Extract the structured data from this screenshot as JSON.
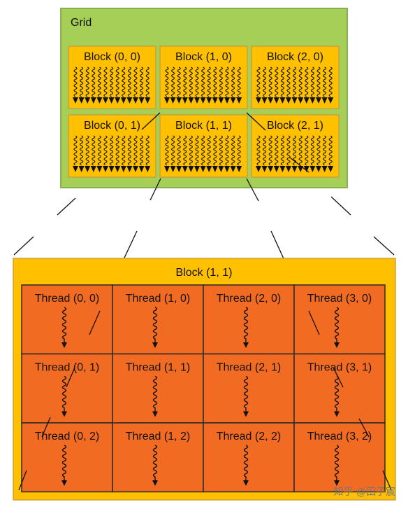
{
  "grid": {
    "label": "Grid",
    "blocks": [
      {
        "label": "Block (0, 0)"
      },
      {
        "label": "Block (1, 0)"
      },
      {
        "label": "Block (2, 0)"
      },
      {
        "label": "Block (0, 1)"
      },
      {
        "label": "Block (1, 1)"
      },
      {
        "label": "Block (2, 1)"
      }
    ]
  },
  "block_detail": {
    "label": "Block (1, 1)",
    "threads": [
      {
        "label": "Thread (0, 0)"
      },
      {
        "label": "Thread (1, 0)"
      },
      {
        "label": "Thread (2, 0)"
      },
      {
        "label": "Thread (3, 0)"
      },
      {
        "label": "Thread (0, 1)"
      },
      {
        "label": "Thread (1, 1)"
      },
      {
        "label": "Thread (2, 1)"
      },
      {
        "label": "Thread (3, 1)"
      },
      {
        "label": "Thread (0, 2)"
      },
      {
        "label": "Thread (1, 2)"
      },
      {
        "label": "Thread (2, 2)"
      },
      {
        "label": "Thread (3, 2)"
      }
    ]
  },
  "watermark": "知乎 @田子宸",
  "colors": {
    "grid_fill": "#a5cf56",
    "grid_border": "#8aab57",
    "block_fill": "#ffc000",
    "block_border": "#c9a13a",
    "thread_fill": "#f26b22",
    "thread_border": "#2b2b2b",
    "line": "#111111"
  }
}
